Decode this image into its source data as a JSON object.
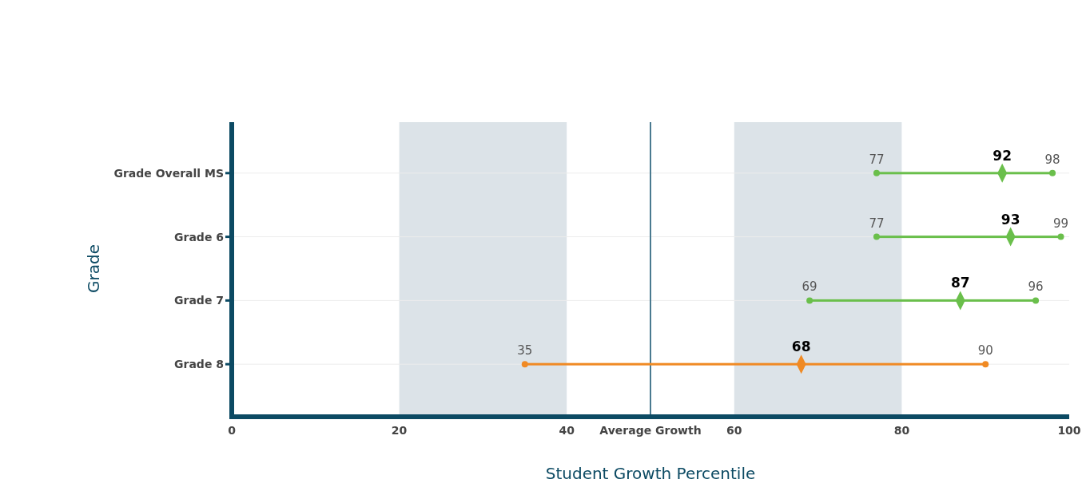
{
  "chart_data": {
    "type": "bar",
    "orientation": "horizontal",
    "xlabel": "Student Growth Percentile",
    "ylabel": "Grade",
    "categories": [
      "Grade Overall MS",
      "Grade 6",
      "Grade 7",
      "Grade 8"
    ],
    "xlim": [
      0,
      100
    ],
    "xticks": [
      0,
      20,
      40,
      {
        "value": 50,
        "label": "Average Growth"
      },
      60,
      80,
      100
    ],
    "grid": "y",
    "bands": [
      {
        "axis": "x",
        "from": 20,
        "to": 40,
        "color": "#dce3e8"
      },
      {
        "axis": "x",
        "from": 60,
        "to": 80,
        "color": "#dce3e8"
      }
    ],
    "ref_lines": [
      {
        "axis": "x",
        "value": 50,
        "color": "#4a7a90"
      }
    ],
    "series": [
      {
        "base": [
          77,
          77,
          69,
          35
        ],
        "values": [
          21,
          22,
          27,
          55
        ],
        "colors": [
          "#6abf4b",
          "#6abf4b",
          "#6abf4b",
          "#f08a24"
        ]
      },
      {
        "type": "scatter",
        "marker": "circle",
        "values": [
          77,
          77,
          69,
          35
        ],
        "colors": [
          "#6abf4b",
          "#6abf4b",
          "#6abf4b",
          "#f08a24"
        ],
        "value_labels": [
          "77",
          "77",
          "69",
          "35"
        ]
      },
      {
        "type": "scatter",
        "marker": "diamond",
        "values": [
          92,
          93,
          87,
          68
        ],
        "colors": [
          "#6abf4b",
          "#6abf4b",
          "#6abf4b",
          "#f08a24"
        ],
        "value_labels": [
          "92",
          "93",
          "87",
          "68"
        ]
      },
      {
        "type": "scatter",
        "marker": "circle",
        "values": [
          98,
          99,
          96,
          90
        ],
        "colors": [
          "#6abf4b",
          "#6abf4b",
          "#6abf4b",
          "#f08a24"
        ],
        "value_labels": [
          "98",
          "99",
          "96",
          "90"
        ]
      }
    ]
  }
}
